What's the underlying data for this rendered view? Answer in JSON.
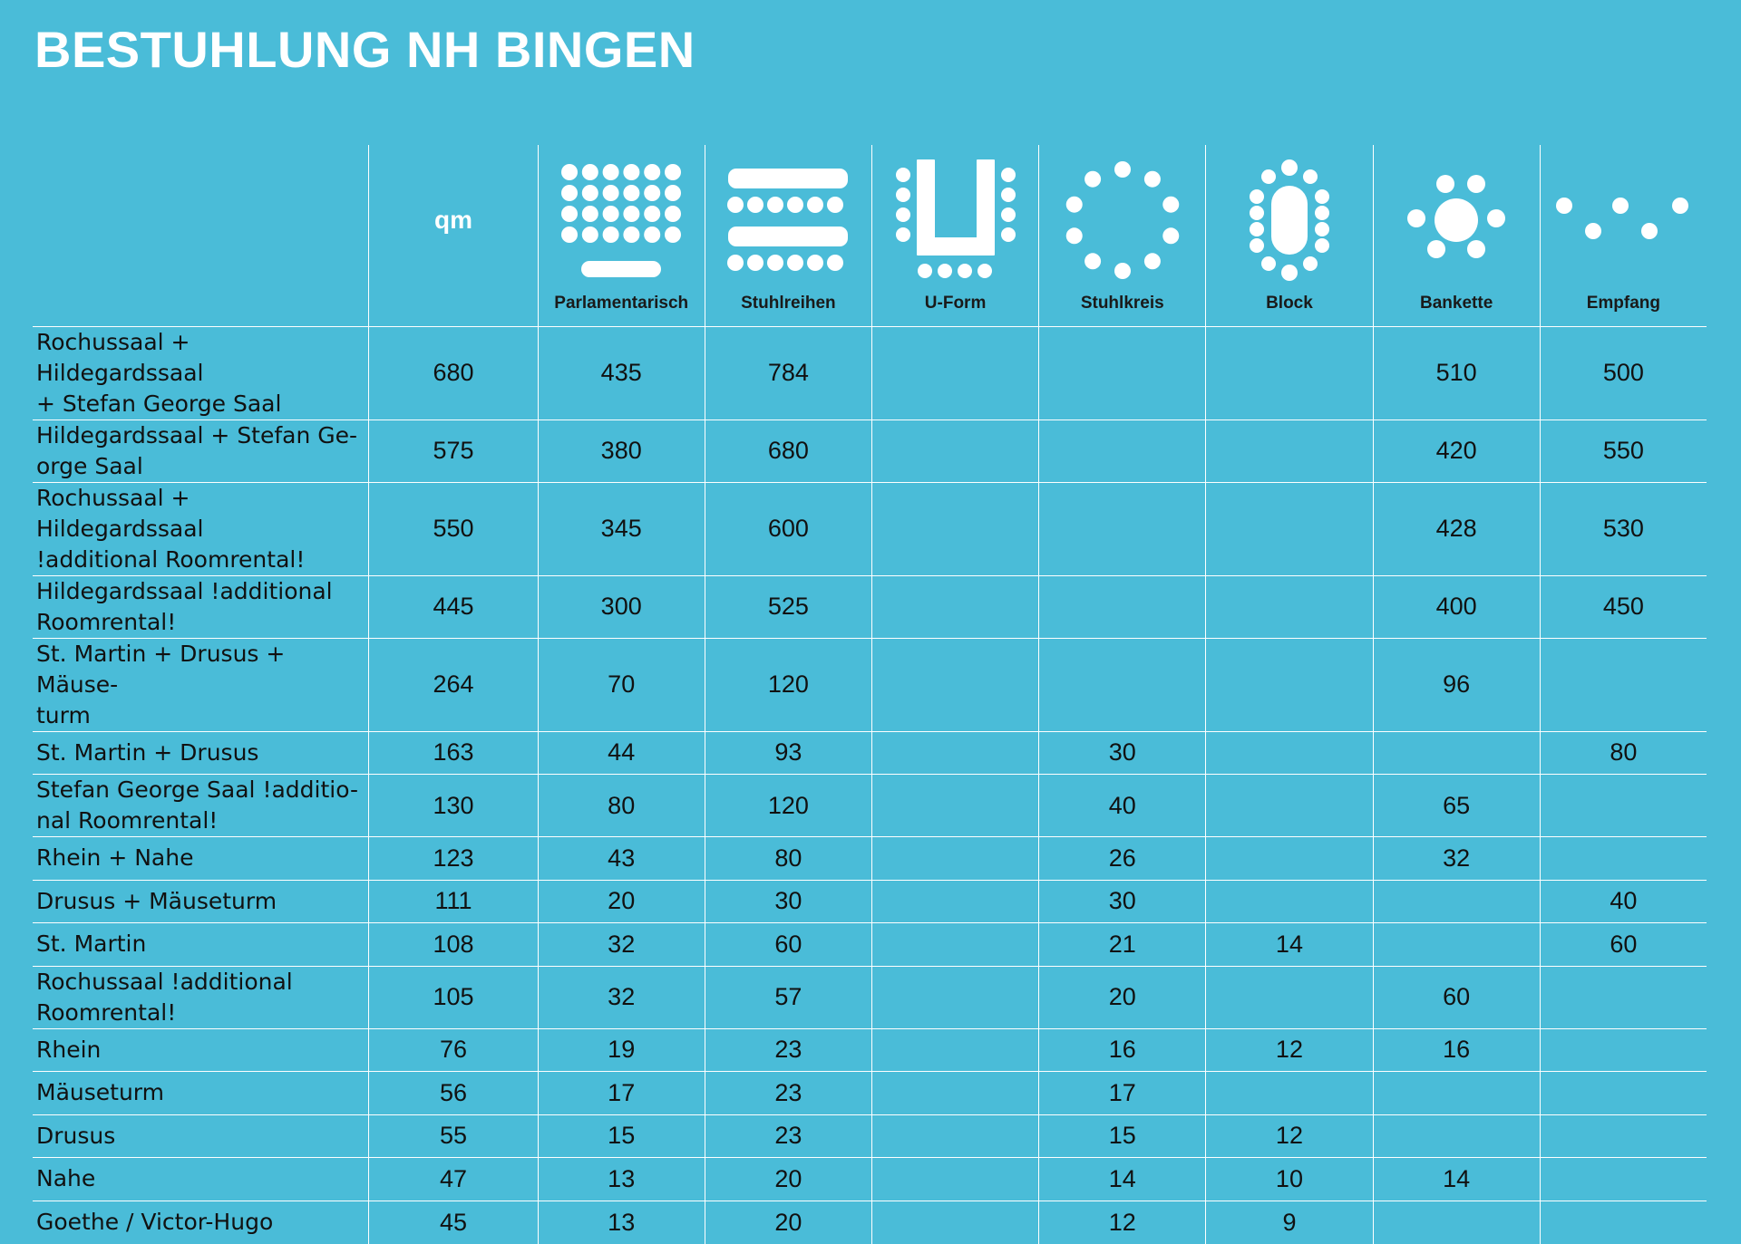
{
  "title": "BESTUHLUNG NH BINGEN",
  "colors": {
    "background": "#4abcd8",
    "title": "#ffffff",
    "grid": "#ffffff",
    "text": "#111111"
  },
  "header": {
    "area_label": "qm",
    "columns": [
      {
        "label": "Parlamentarisch",
        "icon": "parliament-seating-icon"
      },
      {
        "label": "Stuhlreihen",
        "icon": "chair-rows-icon"
      },
      {
        "label": "U-Form",
        "icon": "u-shape-icon"
      },
      {
        "label": "Stuhlkreis",
        "icon": "chair-circle-icon"
      },
      {
        "label": "Block",
        "icon": "block-table-icon"
      },
      {
        "label": "Bankette",
        "icon": "banquet-icon"
      },
      {
        "label": "Empfang",
        "icon": "reception-icon"
      }
    ]
  },
  "rows": [
    {
      "room": "Rochussaal + Hildegardssaal\n+ Stefan George Saal",
      "values": [
        "680",
        "435",
        "784",
        "",
        "",
        "",
        "510",
        "500"
      ]
    },
    {
      "room": "Hildegardssaal + Stefan Ge-\norge Saal",
      "values": [
        "575",
        "380",
        "680",
        "",
        "",
        "",
        "420",
        "550"
      ]
    },
    {
      "room": "Rochussaal + Hildegardssaal\n!additional Roomrental!",
      "values": [
        "550",
        "345",
        "600",
        "",
        "",
        "",
        "428",
        "530"
      ]
    },
    {
      "room": "Hildegardssaal !additional\nRoomrental!",
      "values": [
        "445",
        "300",
        "525",
        "",
        "",
        "",
        "400",
        "450"
      ]
    },
    {
      "room": "St. Martin + Drusus + Mäuse-\nturm",
      "values": [
        "264",
        "70",
        "120",
        "",
        "",
        "",
        "96",
        ""
      ]
    },
    {
      "room": "St. Martin + Drusus",
      "values": [
        "163",
        "44",
        "93",
        "",
        "30",
        "",
        "",
        "80"
      ]
    },
    {
      "room": "Stefan George Saal !additio-\nnal Roomrental!",
      "values": [
        "130",
        "80",
        "120",
        "",
        "40",
        "",
        "65",
        ""
      ]
    },
    {
      "room": "Rhein + Nahe",
      "values": [
        "123",
        "43",
        "80",
        "",
        "26",
        "",
        "32",
        ""
      ]
    },
    {
      "room": "Drusus + Mäuseturm",
      "values": [
        "111",
        "20",
        "30",
        "",
        "30",
        "",
        "",
        "40"
      ]
    },
    {
      "room": "St. Martin",
      "values": [
        "108",
        "32",
        "60",
        "",
        "21",
        "14",
        "",
        "60"
      ]
    },
    {
      "room": "Rochussaal !additional\nRoomrental!",
      "values": [
        "105",
        "32",
        "57",
        "",
        "20",
        "",
        "60",
        ""
      ]
    },
    {
      "room": "Rhein",
      "values": [
        "76",
        "19",
        "23",
        "",
        "16",
        "12",
        "16",
        ""
      ]
    },
    {
      "room": "Mäuseturm",
      "values": [
        "56",
        "17",
        "23",
        "",
        "17",
        "",
        "",
        ""
      ]
    },
    {
      "room": "Drusus",
      "values": [
        "55",
        "15",
        "23",
        "",
        "15",
        "12",
        "",
        ""
      ]
    },
    {
      "room": "Nahe",
      "values": [
        "47",
        "13",
        "20",
        "",
        "14",
        "10",
        "14",
        ""
      ]
    },
    {
      "room": "Goethe / Victor-Hugo",
      "values": [
        "45",
        "13",
        "20",
        "",
        "12",
        "9",
        "",
        ""
      ]
    }
  ]
}
